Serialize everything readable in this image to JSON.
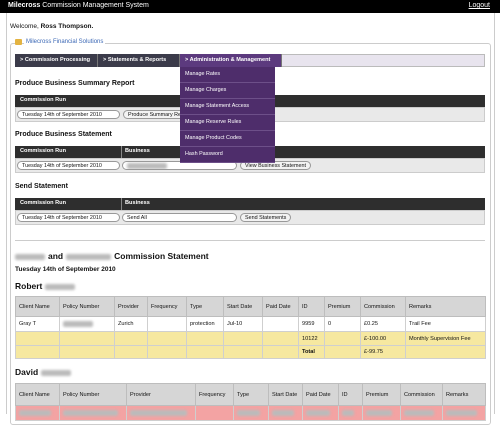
{
  "header": {
    "brand": "Milecross",
    "title": "Commission Management System",
    "logout": "Logout"
  },
  "welcome": {
    "prefix": "Welcome,",
    "name": "Ross Thompson."
  },
  "company": "Milecross Financial Solutions",
  "nav": {
    "tabs": [
      "> Commission Processing",
      "> Statements & Reports",
      "> Administration & Management"
    ],
    "menu": [
      "Manage Rates",
      "Manage Charges",
      "Manage Statement Access",
      "Manage Reserve Rules",
      "Manage Product Codes",
      "Hash Password"
    ]
  },
  "sections": [
    {
      "title": "Produce Business Summary Report",
      "headers": [
        "Commission Run"
      ],
      "date": "Tuesday 14th of September 2010",
      "button": "Produce Summary Report"
    },
    {
      "title": "Produce Business Statement",
      "headers": [
        "Commission Run",
        "Business"
      ],
      "date": "Tuesday 14th of September 2010",
      "button": "View Business Statement"
    },
    {
      "title": "Send Statement",
      "headers": [
        "Commission Run",
        "Business"
      ],
      "date": "Tuesday 14th of September 2010",
      "business": "Send All",
      "button": "Send Statements"
    }
  ],
  "statement": {
    "title_and": "and",
    "title_suffix": "Commission Statement",
    "date": "Tuesday 14th of September 2010",
    "advisers": [
      {
        "name": "Robert",
        "columns": [
          "Client Name",
          "Policy Number",
          "Provider",
          "Frequency",
          "Type",
          "Start Date",
          "Paid Date",
          "ID",
          "Premium",
          "Commission",
          "Remarks"
        ],
        "rows": [
          {
            "color": "#ffffff",
            "client": "Gray T",
            "provider": "Zurich",
            "type": "protection",
            "start": "Jul-10",
            "id": 9959,
            "premium": 0,
            "commission": "£0.25",
            "remarks": "Trail Fee"
          },
          {
            "color": "#f6e8a0",
            "id": 10122,
            "commission": "£-100.00",
            "remarks": "Monthly Supervision Fee"
          },
          {
            "color": "#f6e8a0",
            "id": "Total",
            "commission": "£-99.75"
          }
        ]
      },
      {
        "name": "David",
        "columns": [
          "Client Name",
          "Policy Number",
          "Provider",
          "Frequency",
          "Type",
          "Start Date",
          "Paid Date",
          "ID",
          "Premium",
          "Commission",
          "Remarks"
        ],
        "rows": [
          {
            "color": "#f3a3a3"
          }
        ]
      }
    ]
  }
}
